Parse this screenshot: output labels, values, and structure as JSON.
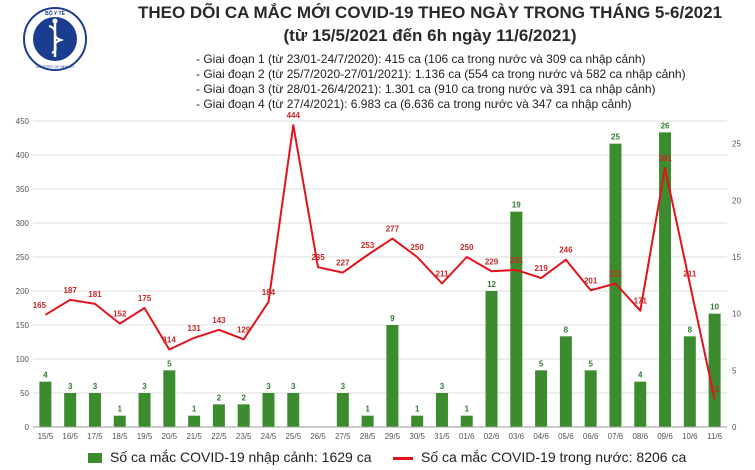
{
  "title": "THEO DÕI CA MẮC MỚI COVID-19 THEO NGÀY TRONG THÁNG 5-6/2021",
  "subtitle": "(từ 15/5/2021 đến 6h ngày 11/6/2021)",
  "logo_text": "BỘ Y TẾ · MINISTRY OF HEALTH",
  "phases": [
    "- Giai đoạn 1 (từ 23/01-24/7/2020): 415 ca (106 ca trong nước và 309 ca nhập cảnh)",
    "- Giai đoạn 2 (từ 25/7/2020-27/01/2021): 1.136 ca (554 ca trong nước và 582 ca nhập cảnh)",
    "- Giai đoạn 3 (từ 28/01-26/4/2021): 1.301 ca (910 ca trong nước và 391 ca nhập cảnh)",
    "- Giai đoạn 4 (từ 27/4/2021): 6.983 ca (6.636 ca trong nước và 347 ca nhập cảnh)"
  ],
  "colors": {
    "bar": "#3d8b2f",
    "bar_label": "#2e7d32",
    "line": "#e3121c",
    "line_label": "#c62828",
    "grid": "#dcdcdc",
    "axis_text": "#555555",
    "logo": "#1a3d8f"
  },
  "chart_data": {
    "type": "bar+line",
    "categories": [
      "15/5",
      "16/5",
      "17/5",
      "18/5",
      "19/5",
      "20/5",
      "21/5",
      "22/5",
      "23/5",
      "24/5",
      "25/5",
      "26/5",
      "27/5",
      "28/5",
      "29/5",
      "30/5",
      "31/5",
      "01/6",
      "02/6",
      "03/6",
      "04/6",
      "05/6",
      "06/6",
      "07/6",
      "08/6",
      "09/6",
      "10/6",
      "11/6"
    ],
    "series": [
      {
        "name": "Số ca mắc COVID-19 nhập cảnh: 1629 ca",
        "type": "bar",
        "axis": "right",
        "values": [
          4,
          3,
          3,
          1,
          3,
          5,
          1,
          2,
          2,
          3,
          3,
          null,
          3,
          1,
          9,
          1,
          3,
          1,
          12,
          19,
          5,
          8,
          5,
          25,
          4,
          26,
          8,
          10
        ]
      },
      {
        "name": "Số ca mắc COVID-19 trong nước: 8206 ca",
        "type": "line",
        "axis": "left",
        "values": [
          165,
          187,
          181,
          152,
          175,
          114,
          131,
          143,
          129,
          184,
          444,
          235,
          227,
          253,
          277,
          250,
          211,
          250,
          229,
          231,
          219,
          246,
          201,
          211,
          171,
          381,
          211,
          41
        ]
      }
    ],
    "y_left": {
      "min": 0,
      "max": 450,
      "ticks": [
        0,
        50,
        100,
        150,
        200,
        250,
        300,
        350,
        400,
        450
      ]
    },
    "y_right": {
      "min": 0,
      "max": 27,
      "ticks": [
        0,
        5,
        10,
        15,
        20,
        25
      ]
    },
    "grid": true,
    "legend_position": "bottom"
  }
}
